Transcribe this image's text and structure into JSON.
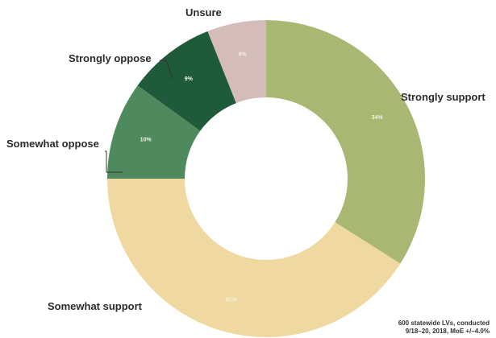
{
  "chart_data": {
    "type": "pie",
    "donut": true,
    "title": "",
    "categories": [
      "Strongly support",
      "Somewhat support",
      "Somewhat oppose",
      "Strongly oppose",
      "Unsure"
    ],
    "values": [
      34,
      41,
      10,
      9,
      6
    ],
    "value_labels": [
      "34%",
      "41%",
      "10%",
      "9%",
      "6%"
    ],
    "colors": [
      "#a8b873",
      "#f0d9a0",
      "#4f8a5e",
      "#1f5a3a",
      "#d4bcb8"
    ],
    "legend": "none",
    "start_angle_deg": 0,
    "direction": "clockwise"
  },
  "footnote": {
    "line1": "600 statewide LVs, conducted",
    "line2": "9/18–20, 2018, MoE +/–4.0%"
  }
}
